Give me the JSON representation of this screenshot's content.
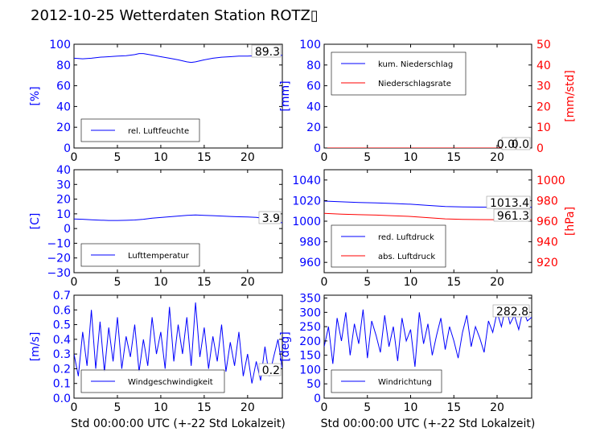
{
  "title": "2012-10-25 Wetterdaten Station ROTZ▯",
  "colors": {
    "left_axis": "#0000ff",
    "right_axis": "#ff0000",
    "series_blue": "#0000ff",
    "series_red": "#ff0000",
    "black": "#000000"
  },
  "chart_data": [
    {
      "id": "humidity",
      "type": "line",
      "xlim": [
        0,
        24
      ],
      "xticks": [
        0,
        5,
        10,
        15,
        20
      ],
      "ylim": [
        0,
        100
      ],
      "yticks": [
        0,
        20,
        40,
        60,
        80,
        100
      ],
      "ylabel": "[%]",
      "legend_position": "lower-left",
      "annotations": [
        "89.3"
      ],
      "series": [
        {
          "name": "rel. Luftfeuchte",
          "color": "#0000ff",
          "axis": "left",
          "x": [
            0,
            1,
            2,
            3,
            4,
            5,
            6,
            7,
            7.5,
            8,
            9,
            10,
            11,
            12,
            13,
            13.5,
            14,
            15,
            16,
            17,
            18,
            19,
            20,
            21,
            22,
            23,
            24
          ],
          "y": [
            86.5,
            86,
            86.5,
            87.5,
            88,
            88.5,
            89,
            90,
            91,
            91,
            89.5,
            88,
            86.5,
            85,
            83,
            82.5,
            83,
            85,
            86.5,
            87.5,
            88,
            88.5,
            88.5,
            89,
            89.5,
            89.5,
            89.3
          ]
        }
      ]
    },
    {
      "id": "precipitation",
      "type": "line",
      "xlim": [
        0,
        24
      ],
      "xticks": [
        0,
        5,
        10,
        15,
        20
      ],
      "ylim": [
        0,
        100
      ],
      "yticks": [
        0,
        20,
        40,
        60,
        80,
        100
      ],
      "ylabel": "[mm]",
      "y2lim": [
        0,
        50
      ],
      "y2ticks": [
        0,
        10,
        20,
        30,
        40,
        50
      ],
      "y2label": "[mm/std]",
      "legend_position": "upper-left",
      "annotations": [
        "0.0",
        "0.0"
      ],
      "series": [
        {
          "name": "kum. Niederschlag",
          "color": "#0000ff",
          "axis": "left",
          "x": [
            0,
            24
          ],
          "y": [
            0,
            0
          ]
        },
        {
          "name": "Niederschlagsrate",
          "color": "#ff0000",
          "axis": "right",
          "x": [
            0,
            24
          ],
          "y": [
            0,
            0
          ]
        }
      ]
    },
    {
      "id": "temperature",
      "type": "line",
      "xlim": [
        0,
        24
      ],
      "xticks": [
        0,
        5,
        10,
        15,
        20
      ],
      "ylim": [
        -30,
        40
      ],
      "yticks": [
        -30,
        -20,
        -10,
        0,
        10,
        20,
        30,
        40
      ],
      "ylabel": "[C]",
      "legend_position": "lower-left",
      "annotations": [
        "3.9"
      ],
      "series": [
        {
          "name": "Lufttemperatur",
          "color": "#0000ff",
          "axis": "left",
          "x": [
            0,
            1,
            2,
            3,
            4,
            5,
            6,
            7,
            8,
            9,
            10,
            11,
            12,
            13,
            14,
            15,
            16,
            17,
            18,
            19,
            20,
            21,
            22,
            23,
            24
          ],
          "y": [
            6.5,
            6.3,
            6.0,
            5.7,
            5.5,
            5.5,
            5.6,
            5.8,
            6.3,
            7.0,
            7.5,
            8.0,
            8.5,
            9.0,
            9.2,
            9.0,
            8.8,
            8.5,
            8.2,
            8.0,
            7.9,
            7.6,
            6.8,
            5.0,
            3.9
          ]
        }
      ]
    },
    {
      "id": "pressure",
      "type": "line",
      "xlim": [
        0,
        24
      ],
      "xticks": [
        0,
        5,
        10,
        15,
        20
      ],
      "ylim": [
        950,
        1050
      ],
      "yticks": [
        960,
        980,
        1000,
        1020,
        1040
      ],
      "y2lim": [
        910,
        1010
      ],
      "y2ticks": [
        920,
        940,
        960,
        980,
        1000
      ],
      "y2label": "[hPa]",
      "legend_position": "lower-left",
      "annotations": [
        "1013.4",
        "961.3"
      ],
      "series": [
        {
          "name": "red. Luftdruck",
          "color": "#0000ff",
          "axis": "left",
          "x": [
            0,
            2,
            4,
            6,
            8,
            10,
            12,
            14,
            16,
            18,
            20,
            22,
            24
          ],
          "y": [
            1019.5,
            1018.8,
            1018.2,
            1017.8,
            1017.2,
            1016.5,
            1015.3,
            1014.2,
            1013.8,
            1013.7,
            1013.6,
            1013.5,
            1013.4
          ]
        },
        {
          "name": "abs. Luftdruck",
          "color": "#ff0000",
          "axis": "right",
          "x": [
            0,
            2,
            4,
            6,
            8,
            10,
            12,
            14,
            16,
            18,
            20,
            22,
            24
          ],
          "y": [
            967.6,
            966.9,
            966.3,
            965.9,
            965.3,
            964.6,
            963.4,
            962.3,
            961.8,
            961.6,
            961.5,
            961.4,
            961.3
          ]
        }
      ]
    },
    {
      "id": "windspeed",
      "type": "line",
      "xlim": [
        0,
        24
      ],
      "xticks": [
        0,
        5,
        10,
        15,
        20
      ],
      "xlabel": "Std 00:00:00 UTC (+-22 Std Lokalzeit)",
      "ylim": [
        0,
        0.7
      ],
      "yticks": [
        0.0,
        0.1,
        0.2,
        0.3,
        0.4,
        0.5,
        0.6,
        0.7
      ],
      "ylabel": "[m/s]",
      "legend_position": "lower-left",
      "annotations": [
        "0.2"
      ],
      "series": [
        {
          "name": "Windgeschwindigkeit",
          "color": "#0000ff",
          "axis": "left",
          "x": [
            0,
            0.5,
            1,
            1.5,
            2,
            2.5,
            3,
            3.5,
            4,
            4.5,
            5,
            5.5,
            6,
            6.5,
            7,
            7.5,
            8,
            8.5,
            9,
            9.5,
            10,
            10.5,
            11,
            11.5,
            12,
            12.5,
            13,
            13.5,
            14,
            14.5,
            15,
            15.5,
            16,
            16.5,
            17,
            17.5,
            18,
            18.5,
            19,
            19.5,
            20,
            20.5,
            21,
            21.5,
            22,
            22.5,
            23,
            23.5,
            24
          ],
          "y": [
            0.3,
            0.15,
            0.45,
            0.22,
            0.6,
            0.2,
            0.52,
            0.18,
            0.48,
            0.25,
            0.55,
            0.2,
            0.42,
            0.28,
            0.5,
            0.18,
            0.4,
            0.22,
            0.55,
            0.3,
            0.45,
            0.2,
            0.62,
            0.25,
            0.5,
            0.3,
            0.55,
            0.22,
            0.65,
            0.28,
            0.48,
            0.2,
            0.42,
            0.25,
            0.5,
            0.18,
            0.38,
            0.22,
            0.45,
            0.15,
            0.3,
            0.1,
            0.25,
            0.12,
            0.35,
            0.15,
            0.28,
            0.4,
            0.2
          ]
        }
      ]
    },
    {
      "id": "winddirection",
      "type": "line",
      "xlim": [
        0,
        24
      ],
      "xticks": [
        0,
        5,
        10,
        15,
        20
      ],
      "xlabel": "Std 00:00:00 UTC (+-22 Std Lokalzeit)",
      "ylim": [
        0,
        360
      ],
      "yticks": [
        0,
        50,
        100,
        150,
        200,
        250,
        300,
        350
      ],
      "ylabel": "[deg]",
      "legend_position": "lower-left",
      "annotations": [
        "282.8"
      ],
      "series": [
        {
          "name": "Windrichtung",
          "color": "#0000ff",
          "axis": "left",
          "x": [
            0,
            0.5,
            1,
            1.5,
            2,
            2.5,
            3,
            3.5,
            4,
            4.5,
            5,
            5.5,
            6,
            6.5,
            7,
            7.5,
            8,
            8.5,
            9,
            9.5,
            10,
            10.5,
            11,
            11.5,
            12,
            12.5,
            13,
            13.5,
            14,
            14.5,
            15,
            15.5,
            16,
            16.5,
            17,
            17.5,
            18,
            18.5,
            19,
            19.5,
            20,
            20.5,
            21,
            21.5,
            22,
            22.5,
            23,
            23.5,
            24
          ],
          "y": [
            180,
            250,
            120,
            280,
            200,
            300,
            150,
            260,
            190,
            310,
            140,
            270,
            220,
            160,
            290,
            180,
            250,
            130,
            280,
            200,
            240,
            110,
            300,
            190,
            260,
            150,
            220,
            280,
            170,
            250,
            200,
            140,
            230,
            290,
            180,
            250,
            210,
            160,
            270,
            230,
            300,
            250,
            320,
            260,
            290,
            240,
            310,
            270,
            283
          ]
        }
      ]
    }
  ]
}
